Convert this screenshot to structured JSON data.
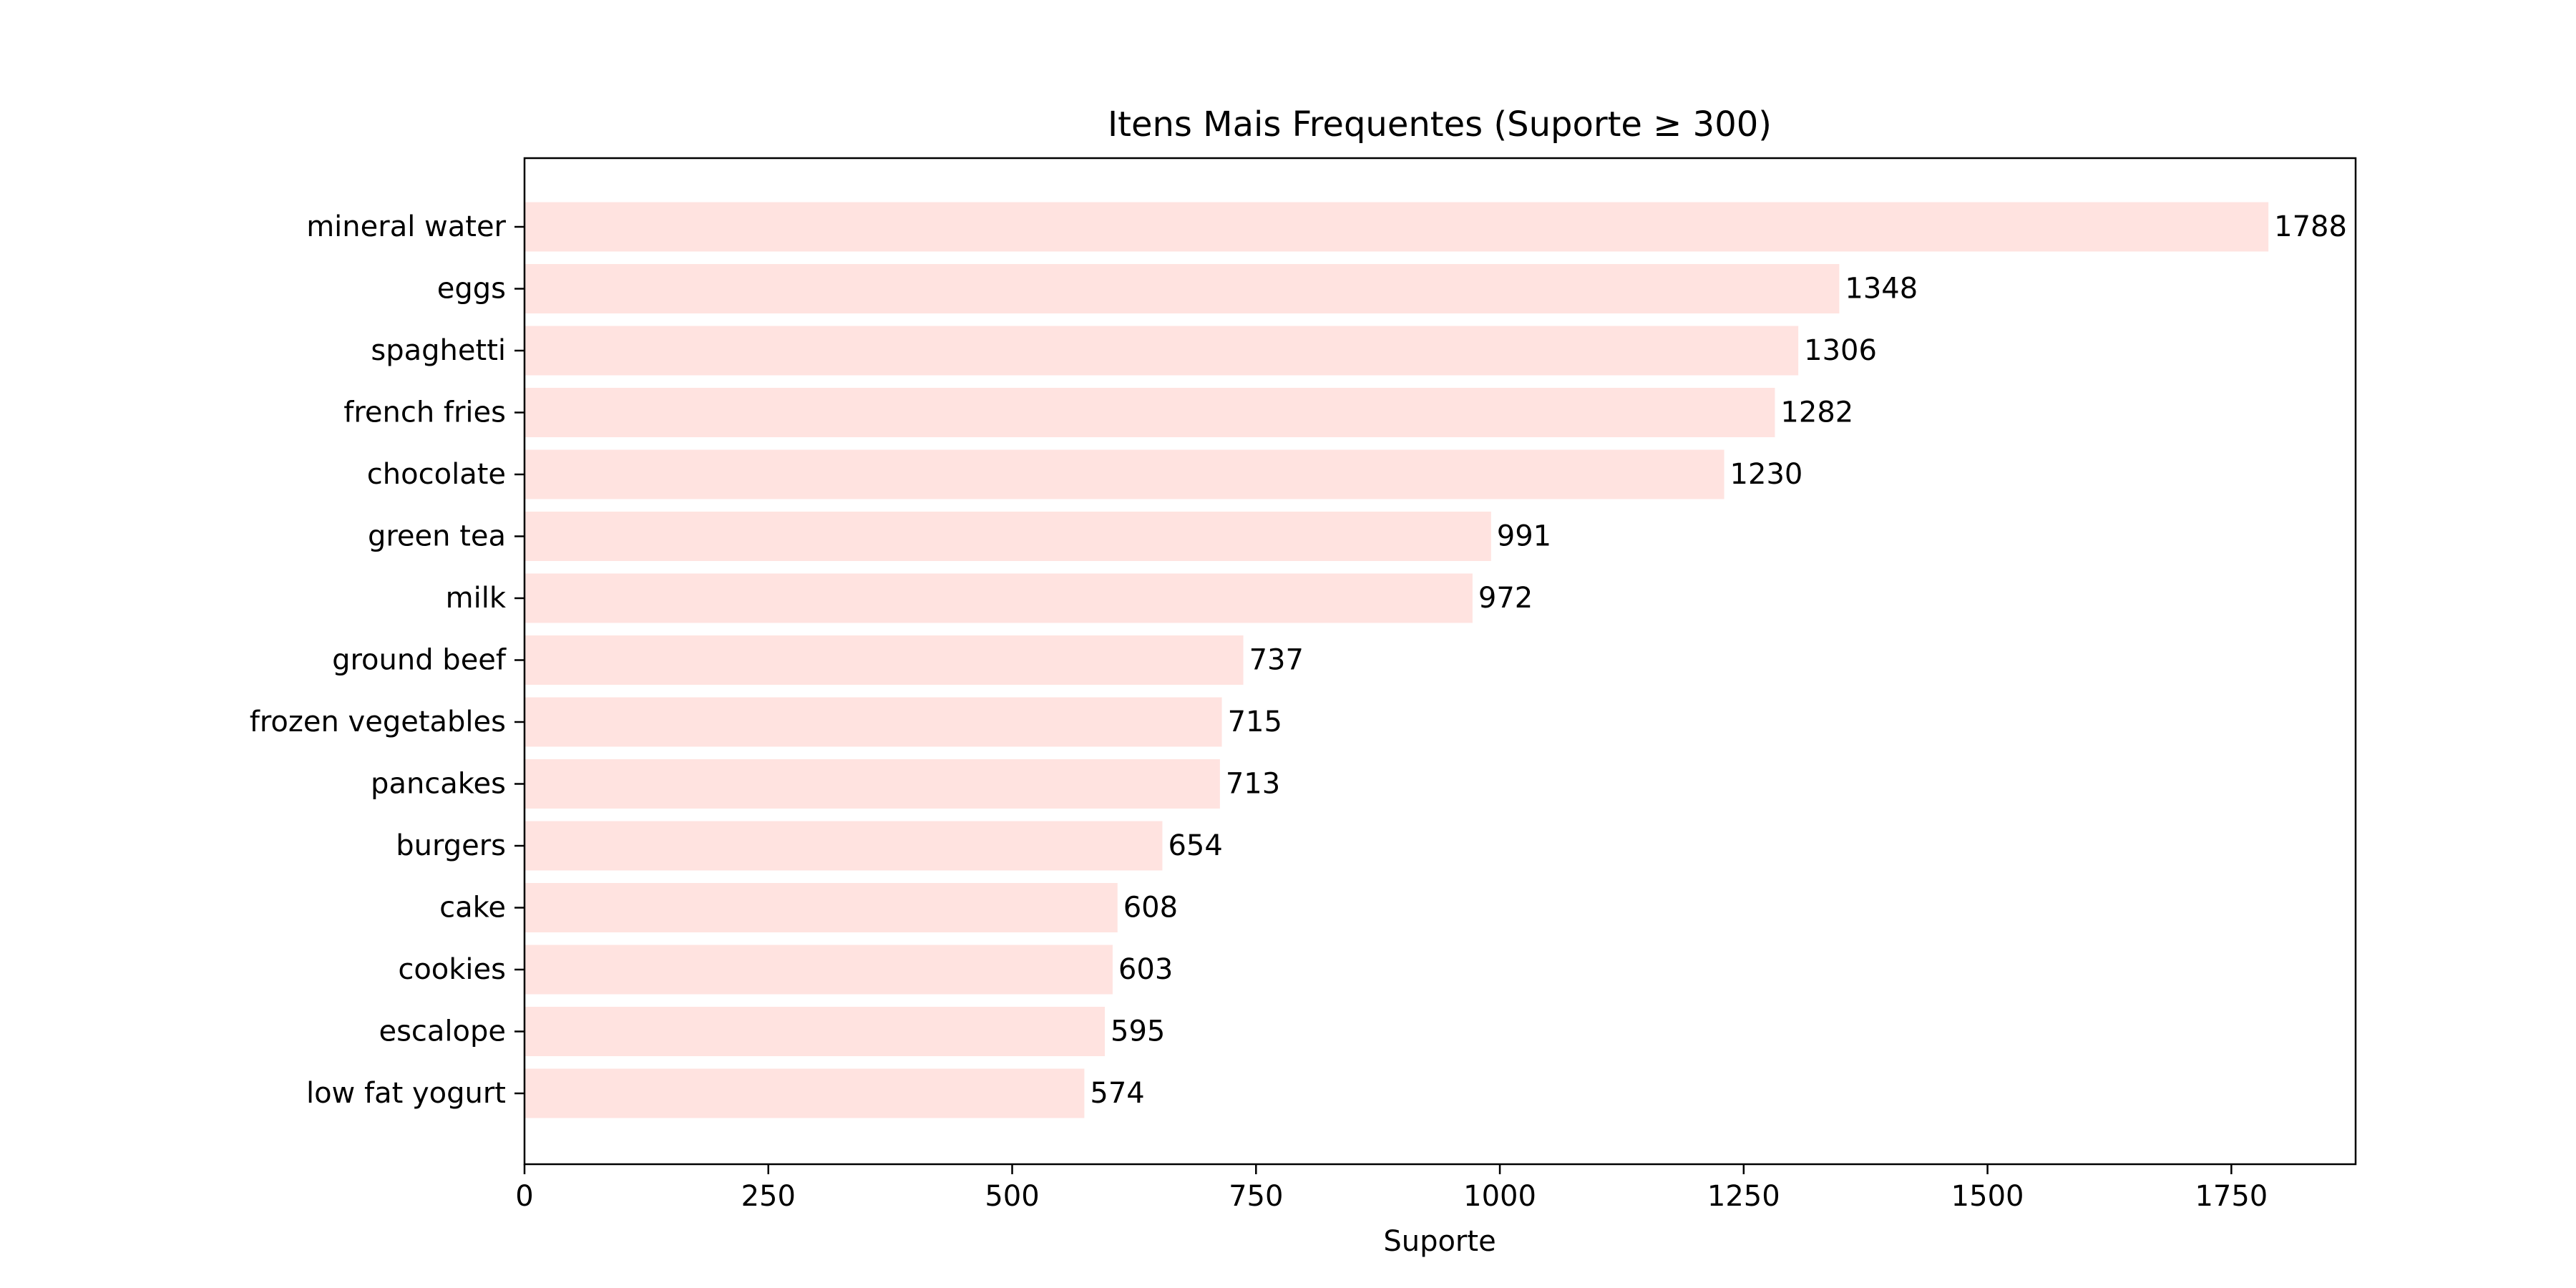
{
  "chart_data": {
    "type": "bar",
    "orientation": "horizontal",
    "title": "Itens Mais Frequentes (Suporte ≥ 300)",
    "xlabel": "Suporte",
    "ylabel": "",
    "xlim": [
      0,
      1877.4
    ],
    "xticks": [
      0,
      250,
      500,
      750,
      1000,
      1250,
      1500,
      1750
    ],
    "xtick_labels": [
      "0",
      "250",
      "500",
      "750",
      "1000",
      "1250",
      "1500",
      "1750"
    ],
    "categories": [
      "mineral water",
      "eggs",
      "spaghetti",
      "french fries",
      "chocolate",
      "green tea",
      "milk",
      "ground beef",
      "frozen vegetables",
      "pancakes",
      "burgers",
      "cake",
      "cookies",
      "escalope",
      "low fat yogurt"
    ],
    "values": [
      1788,
      1348,
      1306,
      1282,
      1230,
      991,
      972,
      737,
      715,
      713,
      654,
      608,
      603,
      595,
      574
    ],
    "value_labels": [
      "1788",
      "1348",
      "1306",
      "1282",
      "1230",
      "991",
      "972",
      "737",
      "715",
      "713",
      "654",
      "608",
      "603",
      "595",
      "574"
    ],
    "bar_color": "#ffe3e0",
    "grid": false,
    "legend": "none"
  }
}
